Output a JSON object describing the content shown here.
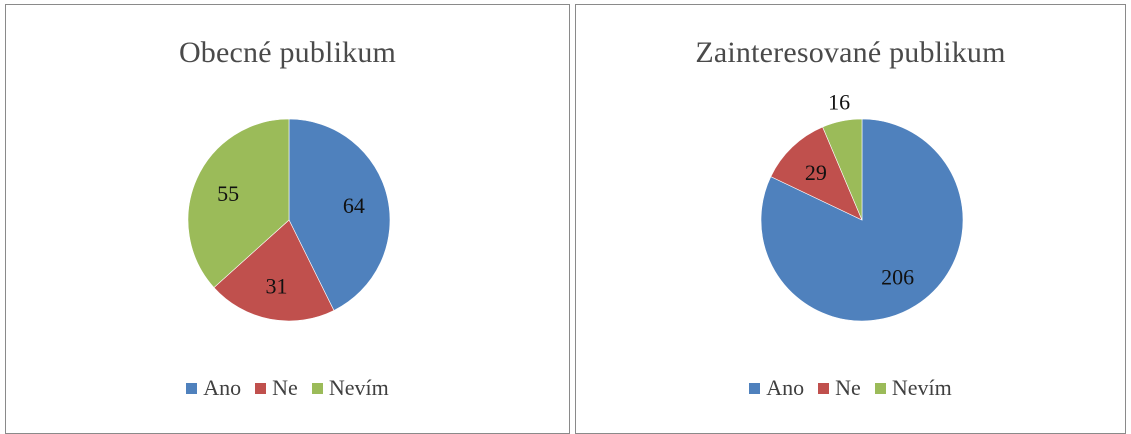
{
  "colors": {
    "Ano": "#4F81BD",
    "Ne": "#C0504D",
    "Nevím": "#9BBB59"
  },
  "chart_data": [
    {
      "type": "pie",
      "title": "Obecné publikum",
      "categories": [
        "Ano",
        "Ne",
        "Nevím"
      ],
      "values": [
        64,
        31,
        55
      ],
      "value_labels": [
        "64",
        "31",
        "55"
      ],
      "legend": [
        "Ano",
        "Ne",
        "Nevím"
      ],
      "legend_position": "bottom",
      "start_angle": "12 o'clock",
      "direction": "clockwise"
    },
    {
      "type": "pie",
      "title": "Zainteresované publikum",
      "categories": [
        "Ano",
        "Ne",
        "Nevím"
      ],
      "values": [
        206,
        29,
        16
      ],
      "value_labels": [
        "206",
        "29",
        "16"
      ],
      "legend": [
        "Ano",
        "Ne",
        "Nevím"
      ],
      "legend_position": "bottom",
      "start_angle": "12 o'clock",
      "direction": "clockwise"
    }
  ]
}
